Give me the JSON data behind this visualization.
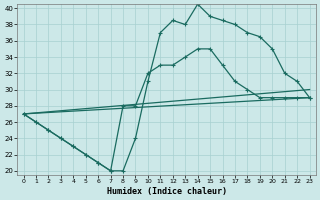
{
  "xlabel": "Humidex (Indice chaleur)",
  "background_color": "#cce8e8",
  "grid_color": "#a8d0d0",
  "line_color": "#1a6b60",
  "xlim": [
    0,
    23
  ],
  "ylim": [
    20,
    40
  ],
  "ytick_vals": [
    20,
    22,
    24,
    26,
    28,
    30,
    32,
    34,
    36,
    38,
    40
  ],
  "xtick_vals": [
    0,
    1,
    2,
    3,
    4,
    5,
    6,
    7,
    8,
    9,
    10,
    11,
    12,
    13,
    14,
    15,
    16,
    17,
    18,
    19,
    20,
    21,
    22,
    23
  ],
  "line1_x": [
    0,
    1,
    2,
    3,
    4,
    5,
    6,
    7,
    8,
    9,
    10,
    11,
    12,
    13,
    14,
    15,
    16,
    17,
    18,
    19,
    20,
    21,
    22,
    23
  ],
  "line1_y": [
    27,
    26,
    25,
    24,
    23,
    22,
    21,
    20,
    20,
    24,
    31,
    37,
    38.5,
    38,
    40.5,
    39,
    38.5,
    38,
    37,
    36.5,
    35,
    32,
    31,
    29
  ],
  "line2_x": [
    0,
    1,
    2,
    3,
    4,
    5,
    6,
    7,
    8,
    9,
    10,
    11,
    12,
    13,
    14,
    15,
    16,
    17,
    18,
    19,
    20,
    21,
    22,
    23
  ],
  "line2_y": [
    27,
    26,
    25,
    24,
    23,
    22,
    21,
    20,
    28,
    28,
    32,
    33,
    33,
    34,
    35,
    35,
    33,
    31,
    30,
    29,
    29,
    29,
    29,
    29
  ],
  "line3_x": [
    0,
    23
  ],
  "line3_y": [
    27,
    29
  ],
  "line4_x": [
    0,
    23
  ],
  "line4_y": [
    27,
    30
  ],
  "ms": 3.5,
  "lw": 0.9
}
